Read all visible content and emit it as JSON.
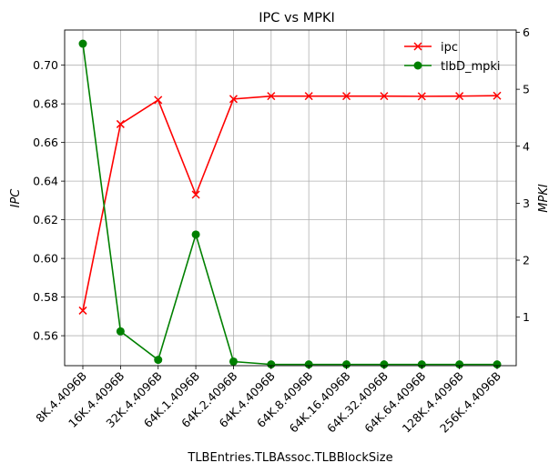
{
  "chart_data": {
    "type": "line",
    "title": "IPC vs MPKI",
    "xlabel": "TLBEntries.TLBAssoc.TLBBlockSize",
    "ylabel_left": "IPC",
    "ylabel_right": "MPKI",
    "categories": [
      "8K.4.4096B",
      "16K.4.4096B",
      "32K.4.4096B",
      "64K.1.4096B",
      "64K.2.4096B",
      "64K.4.4096B",
      "64K.8.4096B",
      "64K.16.4096B",
      "64K.32.4096B",
      "64K.64.4096B",
      "128K.4.4096B",
      "256K.4.4096B"
    ],
    "series": [
      {
        "name": "ipc",
        "axis": "left",
        "color": "#ff0000",
        "marker": "x",
        "values": [
          0.573,
          0.6695,
          0.682,
          0.633,
          0.6825,
          0.684,
          0.684,
          0.684,
          0.684,
          0.6839,
          0.684,
          0.6842
        ]
      },
      {
        "name": "tlbD_mpki",
        "axis": "right",
        "color": "#008000",
        "marker": "circle",
        "values": [
          5.8,
          0.75,
          0.25,
          2.45,
          0.22,
          0.17,
          0.17,
          0.17,
          0.17,
          0.17,
          0.17,
          0.17
        ]
      }
    ],
    "ylim_left": [
      0.5445,
      0.7182
    ],
    "ylim_right": [
      0.148,
      6.04
    ],
    "yticks_left": [
      "0.56",
      "0.58",
      "0.60",
      "0.62",
      "0.64",
      "0.66",
      "0.68",
      "0.70"
    ],
    "yticks_right": [
      "1",
      "2",
      "3",
      "4",
      "5",
      "6"
    ],
    "grid": true,
    "legend_position": "upper-right"
  }
}
